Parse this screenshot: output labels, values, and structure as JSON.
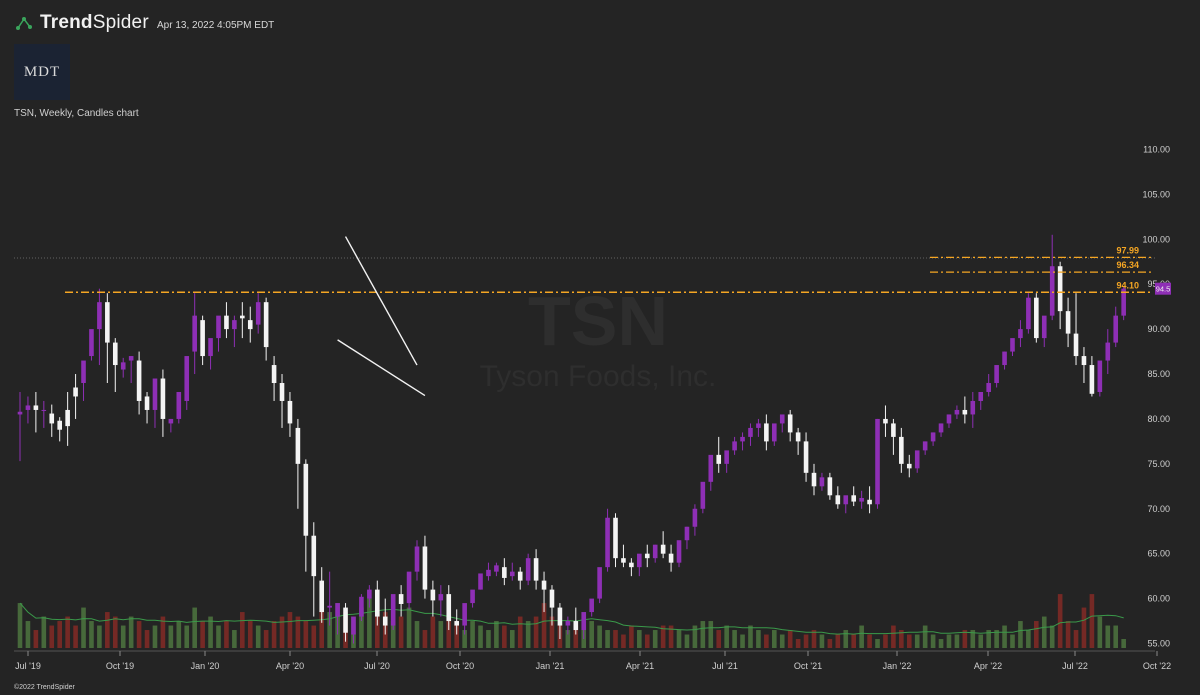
{
  "header": {
    "brand_bold": "Trend",
    "brand_light": "Spider",
    "timestamp": "Apr 13, 2022 4:05PM EDT",
    "logo_text": "MDT",
    "chart_subtitle": "TSN, Weekly, Candles chart",
    "copyright": "©2022 TrendSpider"
  },
  "watermark": {
    "ticker": "TSN",
    "company": "Tyson Foods, Inc."
  },
  "colors": {
    "background": "#242424",
    "up": "#8e2fb5",
    "down": "#f4f4f4",
    "level": "#f5a623",
    "volume_up": "#4a6e3d",
    "volume_down": "#7a2a26",
    "volume_ma": "#3a9a4a"
  },
  "chart_data": {
    "type": "candlestick",
    "timeframe": "Weekly",
    "symbol": "TSN",
    "x_ticks": [
      "Jul '19",
      "Oct '19",
      "Jan '20",
      "Apr '20",
      "Jul '20",
      "Oct '20",
      "Jan '21",
      "Apr '21",
      "Jul '21",
      "Oct '21",
      "Jan '22",
      "Apr '22",
      "Jul '22",
      "Oct '22"
    ],
    "y_ticks": [
      55.0,
      60.0,
      65.0,
      70.0,
      75.0,
      80.0,
      85.0,
      90.0,
      95.0,
      100.0,
      105.0,
      110.0
    ],
    "ylim": [
      54.5,
      112.5
    ],
    "last_price": "94.5",
    "levels": [
      {
        "label": "97.99",
        "value": 97.99
      },
      {
        "label": "96.34",
        "value": 96.34
      },
      {
        "label": "94.10",
        "value": 94.1
      }
    ],
    "trendlines": [
      {
        "from": [
          41,
          100.3
        ],
        "to": [
          50,
          86.0
        ]
      },
      {
        "from": [
          40,
          88.8
        ],
        "to": [
          51,
          82.6
        ]
      }
    ],
    "candles": [
      [
        80.5,
        83,
        80.8,
        75.3
      ],
      [
        81,
        82.5,
        81.5,
        79.5
      ],
      [
        81.5,
        83,
        81,
        78.5
      ],
      [
        81,
        82,
        81,
        79
      ],
      [
        80.6,
        81.6,
        79.5,
        78
      ],
      [
        79.8,
        80.2,
        78.8,
        77.5
      ],
      [
        81,
        83,
        79.2,
        77
      ],
      [
        83.5,
        85,
        82.5,
        80
      ],
      [
        84,
        84.8,
        86.5,
        82
      ],
      [
        87,
        88.5,
        90,
        86.5
      ],
      [
        90,
        94.5,
        93,
        86
      ],
      [
        93,
        94,
        88.5,
        84
      ],
      [
        88.5,
        89,
        86,
        83
      ],
      [
        85.5,
        86.8,
        86.3,
        84.6
      ],
      [
        86.5,
        87,
        87,
        84
      ],
      [
        86.5,
        87.5,
        82,
        80.5
      ],
      [
        82.5,
        83,
        81,
        79.5
      ],
      [
        81,
        82,
        84.5,
        79
      ],
      [
        84.5,
        85.5,
        80,
        78
      ],
      [
        79.5,
        80,
        80,
        78.5
      ],
      [
        80,
        81.5,
        83,
        79.5
      ],
      [
        82,
        85,
        87,
        81
      ],
      [
        87.5,
        94,
        91.5,
        85
      ],
      [
        91,
        91.5,
        87,
        86
      ],
      [
        87,
        88,
        89,
        85.5
      ],
      [
        89,
        90,
        91.5,
        87.5
      ],
      [
        91.5,
        93,
        90,
        89
      ],
      [
        90,
        91.5,
        91,
        88
      ],
      [
        91.5,
        93,
        91.2,
        89
      ],
      [
        91,
        92.5,
        90,
        88.5
      ],
      [
        90.5,
        94,
        93,
        89.5
      ],
      [
        93,
        93.5,
        88,
        86.5
      ],
      [
        86,
        87,
        84,
        82
      ],
      [
        84,
        85,
        82,
        79
      ],
      [
        82,
        83,
        79.5,
        78
      ],
      [
        79,
        80,
        75,
        70
      ],
      [
        75,
        75.5,
        67,
        63
      ],
      [
        67,
        68.5,
        62.5,
        58
      ],
      [
        62,
        63.5,
        58.5,
        57.3
      ],
      [
        59,
        63,
        59.2,
        57
      ],
      [
        58,
        59,
        59.5,
        56
      ],
      [
        59,
        59.5,
        56.2,
        55.2
      ],
      [
        56,
        57.5,
        58,
        55
      ],
      [
        58,
        60.5,
        60.2,
        57.5
      ],
      [
        60,
        61.5,
        61,
        59
      ],
      [
        61,
        62,
        58,
        57
      ],
      [
        58,
        60,
        57,
        56
      ],
      [
        57,
        58,
        60.5,
        56.5
      ],
      [
        60.5,
        61.5,
        59.4,
        58
      ],
      [
        59.5,
        60,
        63,
        58.8
      ],
      [
        63,
        66.5,
        65.8,
        62
      ],
      [
        65.8,
        67,
        61,
        60
      ],
      [
        61,
        62,
        59.8,
        58
      ],
      [
        59.8,
        61.5,
        60.5,
        58
      ],
      [
        60.5,
        61.5,
        57.5,
        56.5
      ],
      [
        57.5,
        58.8,
        57,
        56
      ],
      [
        57,
        58.5,
        59.5,
        56
      ],
      [
        59.5,
        60.2,
        61,
        59
      ],
      [
        61,
        62,
        62.8,
        61
      ],
      [
        62.5,
        64,
        63.2,
        62
      ],
      [
        63,
        64,
        63.7,
        62.5
      ],
      [
        63.5,
        64.5,
        62.3,
        61.5
      ],
      [
        62.5,
        64,
        63,
        62
      ],
      [
        63,
        63.5,
        62,
        61
      ],
      [
        62,
        65,
        64.5,
        61.5
      ],
      [
        64.5,
        65.5,
        62,
        61
      ],
      [
        62,
        63,
        61,
        58.5
      ],
      [
        61,
        61.5,
        59,
        57
      ],
      [
        59,
        59.5,
        57,
        55.5
      ],
      [
        57,
        58,
        57.5,
        56
      ],
      [
        57.5,
        59,
        56.5,
        56
      ],
      [
        56.5,
        57.5,
        58.5,
        55.5
      ],
      [
        58.5,
        59.5,
        60,
        58
      ],
      [
        60,
        62,
        63.5,
        59.5
      ],
      [
        63.5,
        70,
        69,
        63
      ],
      [
        69,
        69.5,
        64.5,
        63.5
      ],
      [
        64.5,
        66,
        64,
        63.5
      ],
      [
        64,
        64.5,
        63.5,
        62.5
      ],
      [
        63.5,
        64.5,
        65,
        62.5
      ],
      [
        65,
        66,
        64.5,
        63.5
      ],
      [
        64.5,
        66,
        66,
        64
      ],
      [
        66,
        67.5,
        65,
        64.5
      ],
      [
        65,
        66,
        64,
        63
      ],
      [
        64,
        66,
        66.5,
        63.5
      ],
      [
        66.5,
        68,
        68,
        65.5
      ],
      [
        68,
        70.5,
        70,
        67
      ],
      [
        70,
        71.5,
        73,
        69.5
      ],
      [
        73,
        74,
        76,
        72
      ],
      [
        76,
        78,
        75,
        74
      ],
      [
        75,
        76,
        76.5,
        74
      ],
      [
        76.5,
        78,
        77.5,
        76
      ],
      [
        77.5,
        78.5,
        78,
        76.5
      ],
      [
        78,
        79.5,
        79,
        77
      ],
      [
        79,
        80,
        79.5,
        78
      ],
      [
        79.5,
        80.5,
        77.5,
        76.5
      ],
      [
        77.5,
        78,
        79.5,
        77
      ],
      [
        79.5,
        80,
        80.5,
        78.5
      ],
      [
        80.5,
        81,
        78.5,
        77.5
      ],
      [
        78.5,
        79,
        77.5,
        76
      ],
      [
        77.5,
        78.5,
        74,
        73
      ],
      [
        74,
        75,
        72.5,
        71.5
      ],
      [
        72.5,
        74,
        73.5,
        72
      ],
      [
        73.5,
        74,
        71.5,
        71
      ],
      [
        71.5,
        72.5,
        70.5,
        70
      ],
      [
        70.5,
        71,
        71.5,
        69.5
      ],
      [
        71.5,
        72.5,
        70.8,
        70.3
      ],
      [
        70.8,
        72,
        71.2,
        70
      ],
      [
        71,
        72.5,
        70.5,
        69.5
      ],
      [
        70.5,
        80,
        80,
        70
      ],
      [
        80,
        81.5,
        79.5,
        78
      ],
      [
        79.5,
        80,
        78,
        76
      ],
      [
        78,
        79,
        75,
        74
      ],
      [
        75,
        76,
        74.5,
        73.5
      ],
      [
        74.5,
        76,
        76.5,
        74
      ],
      [
        76.5,
        77.5,
        77.5,
        76
      ],
      [
        77.5,
        78.5,
        78.5,
        77
      ],
      [
        78.5,
        79.5,
        79.5,
        78
      ],
      [
        79.5,
        80.5,
        80.5,
        79
      ],
      [
        80.5,
        81.5,
        81,
        80
      ],
      [
        81,
        82.5,
        80.5,
        79.5
      ],
      [
        80.5,
        83,
        82,
        79
      ],
      [
        82,
        83,
        83,
        81
      ],
      [
        83,
        85,
        84,
        82.5
      ],
      [
        84,
        85,
        86,
        83.5
      ],
      [
        86,
        87.5,
        87.5,
        85.5
      ],
      [
        87.5,
        88.5,
        89,
        87
      ],
      [
        89,
        91,
        90,
        88
      ],
      [
        90,
        94,
        93.5,
        89.5
      ],
      [
        93.5,
        94,
        89,
        88.5
      ],
      [
        89,
        90.5,
        91.5,
        88
      ],
      [
        91.5,
        100.5,
        97,
        91
      ],
      [
        97,
        97.5,
        92,
        90
      ],
      [
        92,
        93.5,
        89.5,
        88
      ],
      [
        89.5,
        94,
        87,
        86
      ],
      [
        87,
        88,
        86,
        84
      ],
      [
        86,
        87,
        82.8,
        82.5
      ],
      [
        83,
        85,
        86.5,
        82.5
      ],
      [
        86.5,
        90,
        88.5,
        85
      ],
      [
        88.5,
        92.5,
        91.5,
        88
      ],
      [
        91.5,
        94.8,
        94.5,
        91
      ]
    ],
    "volume": [
      59.5,
      57.5,
      56.5,
      58,
      57,
      57.5,
      58,
      57,
      59,
      57.5,
      57,
      58.5,
      58,
      57,
      58,
      57.5,
      56.5,
      57,
      58,
      57,
      57.5,
      57,
      59,
      57.5,
      58,
      57,
      57.5,
      56.5,
      58.5,
      57.5,
      57,
      56.5,
      57.5,
      58,
      58.5,
      58,
      57.5,
      57,
      59,
      58.5,
      59.5,
      58.5,
      58,
      59,
      60,
      59.5,
      58.5,
      57.5,
      58,
      59,
      57.5,
      56.5,
      58,
      57.5,
      58,
      57.5,
      56.5,
      57.5,
      57,
      56.5,
      57.5,
      57,
      56.5,
      58,
      57.5,
      58,
      59.5,
      58,
      57,
      56.5,
      57,
      58.5,
      57.5,
      57,
      56.5,
      56.5,
      56,
      57,
      56.5,
      56,
      56.5,
      57,
      57,
      56.5,
      56,
      57,
      57.5,
      57.5,
      56.5,
      57,
      56.5,
      56,
      57,
      56.5,
      56,
      56.5,
      56,
      56.5,
      55.5,
      56,
      56.5,
      56,
      55.5,
      56,
      56.5,
      56,
      57,
      56,
      55.5,
      56,
      57,
      56.5,
      56,
      56,
      57,
      56,
      55.5,
      56,
      56,
      56.5,
      56.5,
      56,
      56.5,
      56.5,
      57,
      56,
      57.5,
      56.5,
      57.5,
      58,
      57,
      60.5,
      57.5,
      56.5,
      59,
      60.5,
      58,
      57,
      57,
      55.5
    ]
  }
}
